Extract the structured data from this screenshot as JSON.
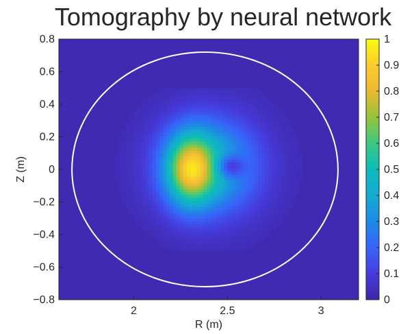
{
  "chart_data": {
    "type": "heatmap",
    "title": "Tomography by neural network",
    "xlabel": "R (m)",
    "ylabel": "Z (m)",
    "xlim": [
      1.6,
      3.2
    ],
    "ylim": [
      -0.8,
      0.8
    ],
    "x_ticks": [
      2,
      2.5,
      3
    ],
    "x_tick_labels": [
      "2",
      "2.5",
      "3"
    ],
    "y_ticks": [
      0.8,
      0.6,
      0.4,
      0.2,
      0,
      -0.2,
      -0.4,
      -0.6,
      -0.8
    ],
    "y_tick_labels": [
      "0.8",
      "0.6",
      "0.4",
      "0.2",
      "0",
      "−0.2",
      "−0.4",
      "−0.6",
      "−0.8"
    ],
    "colorbar": {
      "range": [
        0,
        1
      ],
      "ticks": [
        0,
        0.1,
        0.2,
        0.3,
        0.4,
        0.5,
        0.6,
        0.7,
        0.8,
        0.9,
        1
      ],
      "tick_labels": [
        "0",
        "0.1",
        "0.2",
        "0.3",
        "0.4",
        "0.5",
        "0.6",
        "0.7",
        "0.8",
        "0.9",
        "1"
      ],
      "colormap": "parula"
    },
    "boundary": {
      "shape": "ellipse",
      "center": [
        2.38,
        0.0
      ],
      "radius_r": 0.71,
      "radius_z": 0.72,
      "color": "#ffffff"
    },
    "grid_resolution": [
      55,
      55
    ],
    "field_components": [
      {
        "kind": "blob",
        "center": [
          2.4,
          0.02
        ],
        "sigma": [
          0.18,
          0.2
        ],
        "amplitude": 0.45
      },
      {
        "kind": "blob",
        "center": [
          2.3,
          0.0
        ],
        "sigma": [
          0.085,
          0.15
        ],
        "amplitude": 0.55
      },
      {
        "kind": "dip",
        "center": [
          2.51,
          0.02
        ],
        "sigma": [
          0.055,
          0.05
        ],
        "amplitude": 0.3
      }
    ],
    "background_value": 0.02,
    "grid": false
  }
}
